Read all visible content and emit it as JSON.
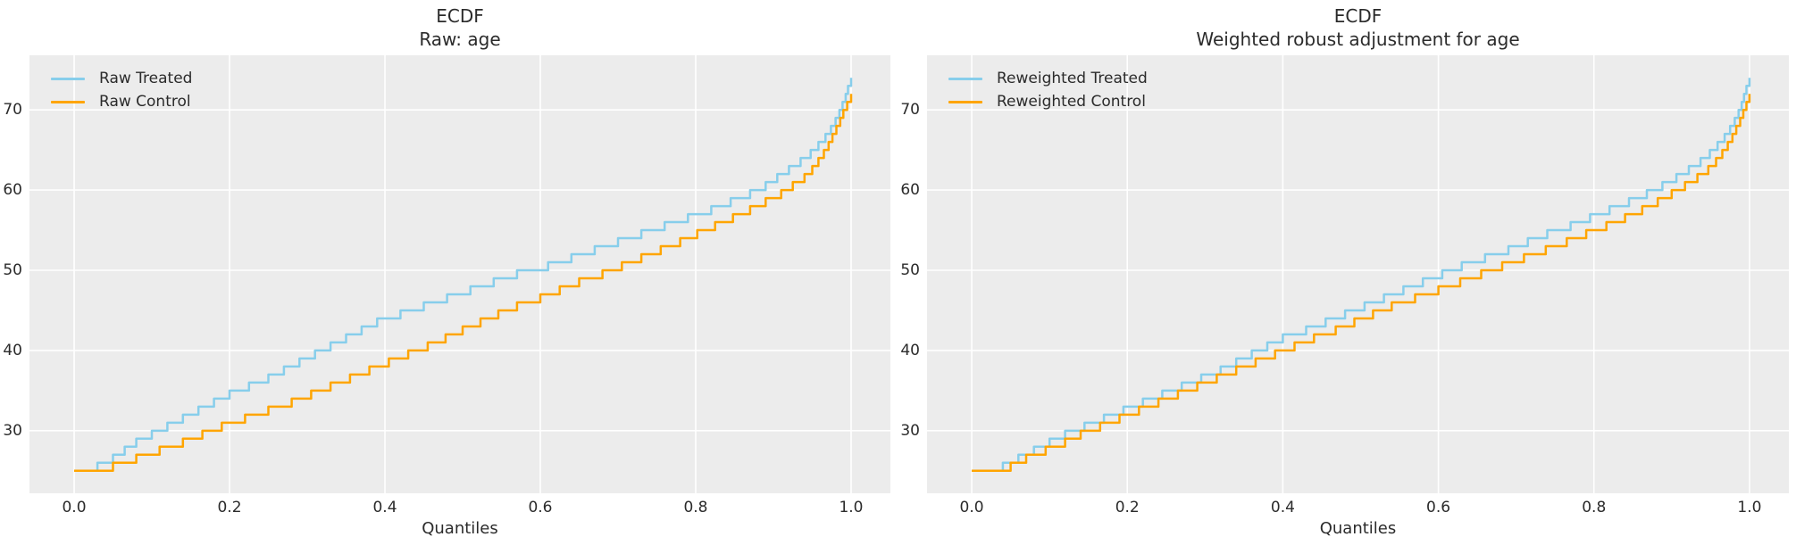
{
  "colors": {
    "figure_background": "#ffffff",
    "axes_background": "#ececec",
    "grid": "#ffffff",
    "text": "#2b2b2b",
    "treated": "#87ceeb",
    "control": "#ffa500"
  },
  "charts": [
    {
      "title_line1": "ECDF",
      "title_line2": "Raw: age",
      "xlabel": "Quantiles"
    },
    {
      "title_line1": "ECDF",
      "title_line2": "Weighted robust adjustment for age",
      "xlabel": "Quantiles"
    }
  ],
  "chart_data": [
    {
      "type": "line",
      "variant": "ecdf_quantile_step",
      "title": "ECDF\nRaw: age",
      "xlabel": "Quantiles",
      "ylabel": "",
      "grid": true,
      "legend_position": "upper left",
      "xlim": [
        -0.0575,
        1.0506
      ],
      "ylim": [
        22.2,
        76.8
      ],
      "x_ticks": [
        0.0,
        0.2,
        0.4,
        0.6,
        0.8,
        1.0
      ],
      "x_tick_labels": [
        "0.0",
        "0.2",
        "0.4",
        "0.6",
        "0.8",
        "1.0"
      ],
      "y_ticks": [
        30,
        40,
        50,
        60,
        70
      ],
      "y_tick_labels": [
        "30",
        "40",
        "50",
        "60",
        "70"
      ],
      "series": [
        {
          "name": "Raw Treated",
          "color": "#87ceeb",
          "points": [
            [
              0,
              25
            ],
            [
              0.025,
              25
            ],
            [
              0.03,
              26
            ],
            [
              0.05,
              27
            ],
            [
              0.065,
              28
            ],
            [
              0.08,
              29
            ],
            [
              0.1,
              30
            ],
            [
              0.12,
              31
            ],
            [
              0.14,
              32
            ],
            [
              0.16,
              33
            ],
            [
              0.18,
              34
            ],
            [
              0.2,
              35
            ],
            [
              0.225,
              36
            ],
            [
              0.25,
              37
            ],
            [
              0.27,
              38
            ],
            [
              0.29,
              39
            ],
            [
              0.31,
              40
            ],
            [
              0.33,
              41
            ],
            [
              0.35,
              42
            ],
            [
              0.37,
              43
            ],
            [
              0.39,
              44
            ],
            [
              0.42,
              45
            ],
            [
              0.45,
              46
            ],
            [
              0.48,
              47
            ],
            [
              0.51,
              48
            ],
            [
              0.54,
              49
            ],
            [
              0.57,
              50
            ],
            [
              0.61,
              51
            ],
            [
              0.64,
              52
            ],
            [
              0.67,
              53
            ],
            [
              0.7,
              54
            ],
            [
              0.73,
              55
            ],
            [
              0.76,
              56
            ],
            [
              0.79,
              57
            ],
            [
              0.82,
              58
            ],
            [
              0.845,
              59
            ],
            [
              0.87,
              60
            ],
            [
              0.89,
              61
            ],
            [
              0.905,
              62
            ],
            [
              0.92,
              63
            ],
            [
              0.935,
              64
            ],
            [
              0.948,
              65
            ],
            [
              0.958,
              66
            ],
            [
              0.967,
              67
            ],
            [
              0.974,
              68
            ],
            [
              0.98,
              69
            ],
            [
              0.985,
              70
            ],
            [
              0.989,
              71
            ],
            [
              0.993,
              72
            ],
            [
              0.996,
              73
            ],
            [
              1.0,
              74
            ]
          ]
        },
        {
          "name": "Raw Control",
          "color": "#ffa500",
          "points": [
            [
              0,
              25
            ],
            [
              0.04,
              25
            ],
            [
              0.05,
              26
            ],
            [
              0.08,
              27
            ],
            [
              0.11,
              28
            ],
            [
              0.14,
              29
            ],
            [
              0.165,
              30
            ],
            [
              0.19,
              31
            ],
            [
              0.22,
              32
            ],
            [
              0.25,
              33
            ],
            [
              0.28,
              34
            ],
            [
              0.305,
              35
            ],
            [
              0.33,
              36
            ],
            [
              0.355,
              37
            ],
            [
              0.38,
              38
            ],
            [
              0.405,
              39
            ],
            [
              0.43,
              40
            ],
            [
              0.455,
              41
            ],
            [
              0.478,
              42
            ],
            [
              0.5,
              43
            ],
            [
              0.523,
              44
            ],
            [
              0.546,
              45
            ],
            [
              0.57,
              46
            ],
            [
              0.6,
              47
            ],
            [
              0.625,
              48
            ],
            [
              0.65,
              49
            ],
            [
              0.68,
              50
            ],
            [
              0.705,
              51
            ],
            [
              0.73,
              52
            ],
            [
              0.755,
              53
            ],
            [
              0.78,
              54
            ],
            [
              0.802,
              55
            ],
            [
              0.825,
              56
            ],
            [
              0.848,
              57
            ],
            [
              0.87,
              58
            ],
            [
              0.89,
              59
            ],
            [
              0.91,
              60
            ],
            [
              0.925,
              61
            ],
            [
              0.94,
              62
            ],
            [
              0.95,
              63
            ],
            [
              0.958,
              64
            ],
            [
              0.965,
              65
            ],
            [
              0.971,
              66
            ],
            [
              0.976,
              67
            ],
            [
              0.981,
              68
            ],
            [
              0.986,
              69
            ],
            [
              0.99,
              70
            ],
            [
              0.995,
              71
            ],
            [
              1.0,
              72
            ]
          ]
        }
      ]
    },
    {
      "type": "line",
      "variant": "ecdf_quantile_step",
      "title": "ECDF\nWeighted robust adjustment for age",
      "xlabel": "Quantiles",
      "ylabel": "",
      "grid": true,
      "legend_position": "upper left",
      "xlim": [
        -0.0575,
        1.0506
      ],
      "ylim": [
        22.2,
        76.8
      ],
      "x_ticks": [
        0.0,
        0.2,
        0.4,
        0.6,
        0.8,
        1.0
      ],
      "x_tick_labels": [
        "0.0",
        "0.2",
        "0.4",
        "0.6",
        "0.8",
        "1.0"
      ],
      "y_ticks": [
        30,
        40,
        50,
        60,
        70
      ],
      "y_tick_labels": [
        "30",
        "40",
        "50",
        "60",
        "70"
      ],
      "series": [
        {
          "name": "Reweighted Treated",
          "color": "#87ceeb",
          "points": [
            [
              0,
              25
            ],
            [
              0.03,
              25
            ],
            [
              0.04,
              26
            ],
            [
              0.06,
              27
            ],
            [
              0.08,
              28
            ],
            [
              0.1,
              29
            ],
            [
              0.12,
              30
            ],
            [
              0.145,
              31
            ],
            [
              0.17,
              32
            ],
            [
              0.195,
              33
            ],
            [
              0.22,
              34
            ],
            [
              0.245,
              35
            ],
            [
              0.27,
              36
            ],
            [
              0.295,
              37
            ],
            [
              0.32,
              38
            ],
            [
              0.34,
              39
            ],
            [
              0.36,
              40
            ],
            [
              0.38,
              41
            ],
            [
              0.4,
              42
            ],
            [
              0.43,
              43
            ],
            [
              0.455,
              44
            ],
            [
              0.48,
              45
            ],
            [
              0.505,
              46
            ],
            [
              0.53,
              47
            ],
            [
              0.555,
              48
            ],
            [
              0.58,
              49
            ],
            [
              0.605,
              50
            ],
            [
              0.63,
              51
            ],
            [
              0.66,
              52
            ],
            [
              0.69,
              53
            ],
            [
              0.715,
              54
            ],
            [
              0.74,
              55
            ],
            [
              0.77,
              56
            ],
            [
              0.795,
              57
            ],
            [
              0.82,
              58
            ],
            [
              0.845,
              59
            ],
            [
              0.868,
              60
            ],
            [
              0.888,
              61
            ],
            [
              0.906,
              62
            ],
            [
              0.922,
              63
            ],
            [
              0.937,
              64
            ],
            [
              0.949,
              65
            ],
            [
              0.959,
              66
            ],
            [
              0.968,
              67
            ],
            [
              0.975,
              68
            ],
            [
              0.981,
              69
            ],
            [
              0.986,
              70
            ],
            [
              0.99,
              71
            ],
            [
              0.993,
              72
            ],
            [
              0.996,
              73
            ],
            [
              1.0,
              74
            ]
          ]
        },
        {
          "name": "Reweighted Control",
          "color": "#ffa500",
          "points": [
            [
              0,
              25
            ],
            [
              0.035,
              25
            ],
            [
              0.05,
              26
            ],
            [
              0.07,
              27
            ],
            [
              0.095,
              28
            ],
            [
              0.12,
              29
            ],
            [
              0.14,
              30
            ],
            [
              0.165,
              31
            ],
            [
              0.19,
              32
            ],
            [
              0.215,
              33
            ],
            [
              0.24,
              34
            ],
            [
              0.265,
              35
            ],
            [
              0.29,
              36
            ],
            [
              0.315,
              37
            ],
            [
              0.34,
              38
            ],
            [
              0.365,
              39
            ],
            [
              0.39,
              40
            ],
            [
              0.415,
              41
            ],
            [
              0.44,
              42
            ],
            [
              0.468,
              43
            ],
            [
              0.492,
              44
            ],
            [
              0.516,
              45
            ],
            [
              0.54,
              46
            ],
            [
              0.57,
              47
            ],
            [
              0.6,
              48
            ],
            [
              0.628,
              49
            ],
            [
              0.655,
              50
            ],
            [
              0.682,
              51
            ],
            [
              0.71,
              52
            ],
            [
              0.738,
              53
            ],
            [
              0.765,
              54
            ],
            [
              0.79,
              55
            ],
            [
              0.816,
              56
            ],
            [
              0.84,
              57
            ],
            [
              0.862,
              58
            ],
            [
              0.882,
              59
            ],
            [
              0.9,
              60
            ],
            [
              0.917,
              61
            ],
            [
              0.933,
              62
            ],
            [
              0.947,
              63
            ],
            [
              0.957,
              64
            ],
            [
              0.965,
              65
            ],
            [
              0.972,
              66
            ],
            [
              0.978,
              67
            ],
            [
              0.983,
              68
            ],
            [
              0.988,
              69
            ],
            [
              0.992,
              70
            ],
            [
              0.996,
              71
            ],
            [
              1.0,
              72
            ]
          ]
        }
      ]
    }
  ]
}
